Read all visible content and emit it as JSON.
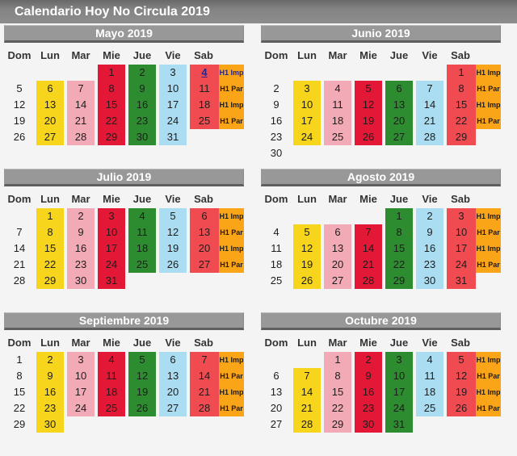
{
  "title": "Calendario Hoy No Circula 2019",
  "weekday_headers": [
    "Dom",
    "Lun",
    "Mar",
    "Mie",
    "Jue",
    "Vie",
    "Sab"
  ],
  "colors": {
    "page_background": "#F4F4F4",
    "title_bar_gray": "#848484",
    "month_header_gray": "#989898",
    "monday_yellow": "#F6D51C",
    "tuesday_pink": "#F2ABB6",
    "wednesday_red": "#E21836",
    "thursday_green": "#2E8C30",
    "friday_blue": "#ABDDF2",
    "saturday_red": "#F14B52",
    "label_orange": "#FAA418",
    "link_navy": "#26268C",
    "date_text": "#1D1D1D"
  },
  "months": [
    {
      "name": "Mayo 2019",
      "weeks": [
        [
          "",
          "",
          "",
          "1",
          "2",
          "3",
          "4"
        ],
        [
          "5",
          "6",
          "7",
          "8",
          "9",
          "10",
          "11"
        ],
        [
          "12",
          "13",
          "14",
          "15",
          "16",
          "17",
          "18"
        ],
        [
          "19",
          "20",
          "21",
          "22",
          "23",
          "24",
          "25"
        ],
        [
          "26",
          "27",
          "28",
          "29",
          "30",
          "31",
          ""
        ]
      ],
      "labels": [
        "H1 Imp",
        "H1 Par",
        "H1 Imp",
        "H1 Par"
      ],
      "special": {
        "linked_date_week": 0,
        "linked_label_week": 0
      }
    },
    {
      "name": "Junio 2019",
      "weeks": [
        [
          "",
          "",
          "",
          "",
          "",
          "",
          "1"
        ],
        [
          "2",
          "3",
          "4",
          "5",
          "6",
          "7",
          "8"
        ],
        [
          "9",
          "10",
          "11",
          "12",
          "13",
          "14",
          "15"
        ],
        [
          "16",
          "17",
          "18",
          "19",
          "20",
          "21",
          "22"
        ],
        [
          "23",
          "24",
          "25",
          "26",
          "27",
          "28",
          "29"
        ],
        [
          "30",
          "",
          "",
          "",
          "",
          "",
          ""
        ]
      ],
      "labels": [
        "H1 Imp",
        "H1 Par",
        "H1 Imp",
        "H1 Par"
      ]
    },
    {
      "name": "Julio 2019",
      "weeks": [
        [
          "",
          "1",
          "2",
          "3",
          "4",
          "5",
          "6"
        ],
        [
          "7",
          "8",
          "9",
          "10",
          "11",
          "12",
          "13"
        ],
        [
          "14",
          "15",
          "16",
          "17",
          "18",
          "19",
          "20"
        ],
        [
          "21",
          "22",
          "23",
          "24",
          "25",
          "26",
          "27"
        ],
        [
          "28",
          "29",
          "30",
          "31",
          "",
          "",
          ""
        ]
      ],
      "labels": [
        "H1 Imp",
        "H1 Par",
        "H1 Imp",
        "H1 Par"
      ]
    },
    {
      "name": "Agosto 2019",
      "weeks": [
        [
          "",
          "",
          "",
          "",
          "1",
          "2",
          "3"
        ],
        [
          "4",
          "5",
          "6",
          "7",
          "8",
          "9",
          "10"
        ],
        [
          "11",
          "12",
          "13",
          "14",
          "15",
          "16",
          "17"
        ],
        [
          "18",
          "19",
          "20",
          "21",
          "22",
          "23",
          "24"
        ],
        [
          "25",
          "26",
          "27",
          "28",
          "29",
          "30",
          "31"
        ]
      ],
      "labels": [
        "H1 Imp",
        "H1 Par",
        "H1 Imp",
        "H1 Par"
      ]
    },
    {
      "name": "Septiembre 2019",
      "weeks": [
        [
          "1",
          "2",
          "3",
          "4",
          "5",
          "6",
          "7"
        ],
        [
          "8",
          "9",
          "10",
          "11",
          "12",
          "13",
          "14"
        ],
        [
          "15",
          "16",
          "17",
          "18",
          "19",
          "20",
          "21"
        ],
        [
          "22",
          "23",
          "24",
          "25",
          "26",
          "27",
          "28"
        ],
        [
          "29",
          "30",
          "",
          "",
          "",
          "",
          ""
        ]
      ],
      "labels": [
        "H1 Imp",
        "H1 Par",
        "H1 Imp",
        "H1 Par"
      ]
    },
    {
      "name": "Octubre 2019",
      "weeks": [
        [
          "",
          "",
          "1",
          "2",
          "3",
          "4",
          "5"
        ],
        [
          "6",
          "7",
          "8",
          "9",
          "10",
          "11",
          "12"
        ],
        [
          "13",
          "14",
          "15",
          "16",
          "17",
          "18",
          "19"
        ],
        [
          "20",
          "21",
          "22",
          "23",
          "24",
          "25",
          "26"
        ],
        [
          "27",
          "28",
          "29",
          "30",
          "31",
          "",
          ""
        ]
      ],
      "labels": [
        "H1 Imp",
        "H1 Par",
        "H1 Imp",
        "H1 Par"
      ]
    }
  ]
}
